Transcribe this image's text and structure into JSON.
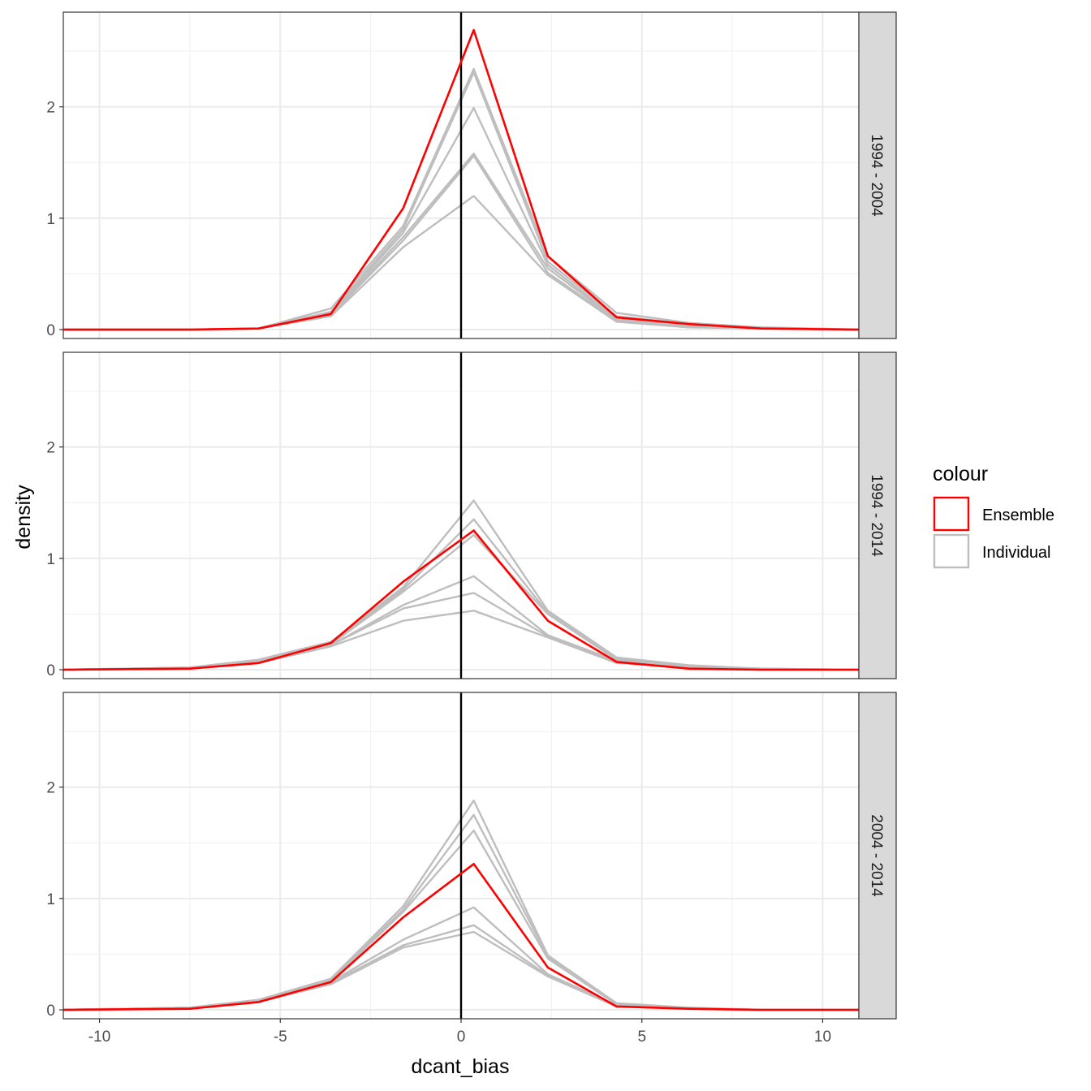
{
  "chart_data": {
    "type": "line",
    "xlabel": "dcant_bias",
    "ylabel": "density",
    "xlim": [
      -11,
      11
    ],
    "ylim": [
      -0.08,
      2.85
    ],
    "x_ticks": [
      -10,
      -5,
      0,
      5,
      10
    ],
    "x_tick_labels": [
      "-10",
      "-5",
      "0",
      "5",
      "10"
    ],
    "y_ticks": [
      0,
      1,
      2
    ],
    "y_tick_labels": [
      "0",
      "1",
      "2"
    ],
    "vline_x": 0,
    "x": [
      -11,
      -7.5,
      -5.6,
      -3.6,
      -1.6,
      0.35,
      2.4,
      4.3,
      6.3,
      8.3,
      11
    ],
    "legend": {
      "title": "colour",
      "position": "right",
      "entries": [
        {
          "label": "Ensemble",
          "color": "#ff0000"
        },
        {
          "label": "Individual",
          "color": "#bebebe"
        }
      ]
    },
    "colors": {
      "Ensemble": "#ff0000",
      "Individual": "#bebebe",
      "vline": "#000000",
      "strip_bg": "#d9d9d9"
    },
    "panels": [
      {
        "label": "1994 - 2004",
        "ensemble": [
          0,
          0,
          0.01,
          0.14,
          1.09,
          2.69,
          0.66,
          0.11,
          0.05,
          0.01,
          0
        ],
        "individual": [
          [
            0,
            0,
            0.01,
            0.19,
            0.93,
            2.34,
            0.66,
            0.15,
            0.06,
            0.02,
            0
          ],
          [
            0,
            0,
            0.01,
            0.16,
            0.9,
            2.31,
            0.61,
            0.12,
            0.05,
            0.02,
            0
          ],
          [
            0,
            0,
            0.01,
            0.15,
            0.87,
            1.99,
            0.58,
            0.1,
            0.04,
            0.01,
            0
          ],
          [
            0,
            0,
            0.01,
            0.14,
            0.83,
            1.58,
            0.55,
            0.09,
            0.03,
            0.01,
            0
          ],
          [
            0,
            0,
            0.01,
            0.13,
            0.8,
            1.56,
            0.51,
            0.08,
            0.03,
            0.01,
            0
          ],
          [
            0,
            0,
            0.01,
            0.12,
            0.74,
            1.2,
            0.49,
            0.07,
            0.02,
            0.01,
            0
          ]
        ]
      },
      {
        "label": "1994 - 2014",
        "ensemble": [
          0,
          0.01,
          0.06,
          0.24,
          0.79,
          1.25,
          0.44,
          0.07,
          0.01,
          0,
          0
        ],
        "individual": [
          [
            0,
            0.02,
            0.09,
            0.25,
            0.74,
            1.52,
            0.53,
            0.11,
            0.04,
            0.01,
            0
          ],
          [
            0,
            0.02,
            0.08,
            0.24,
            0.72,
            1.35,
            0.51,
            0.1,
            0.03,
            0.01,
            0
          ],
          [
            0,
            0.02,
            0.08,
            0.23,
            0.7,
            1.21,
            0.5,
            0.09,
            0.03,
            0.01,
            0
          ],
          [
            0,
            0.01,
            0.07,
            0.22,
            0.58,
            0.84,
            0.31,
            0.08,
            0.02,
            0,
            0
          ],
          [
            0,
            0.01,
            0.07,
            0.22,
            0.55,
            0.69,
            0.3,
            0.07,
            0.02,
            0,
            0
          ],
          [
            0,
            0.01,
            0.06,
            0.21,
            0.44,
            0.53,
            0.29,
            0.06,
            0.02,
            0,
            0
          ]
        ]
      },
      {
        "label": "2004 - 2014",
        "ensemble": [
          0,
          0.01,
          0.07,
          0.25,
          0.83,
          1.31,
          0.38,
          0.03,
          0.01,
          0,
          0
        ],
        "individual": [
          [
            0,
            0.02,
            0.09,
            0.28,
            0.93,
            1.88,
            0.49,
            0.06,
            0.02,
            0,
            0
          ],
          [
            0,
            0.02,
            0.09,
            0.27,
            0.9,
            1.75,
            0.48,
            0.05,
            0.02,
            0,
            0
          ],
          [
            0,
            0.02,
            0.08,
            0.26,
            0.88,
            1.61,
            0.46,
            0.05,
            0.01,
            0,
            0
          ],
          [
            0,
            0.02,
            0.08,
            0.25,
            0.63,
            0.92,
            0.32,
            0.04,
            0.01,
            0,
            0
          ],
          [
            0,
            0.02,
            0.07,
            0.24,
            0.58,
            0.76,
            0.31,
            0.04,
            0.01,
            0,
            0
          ],
          [
            0,
            0.01,
            0.07,
            0.23,
            0.56,
            0.7,
            0.3,
            0.03,
            0.01,
            0,
            0
          ]
        ]
      }
    ]
  }
}
